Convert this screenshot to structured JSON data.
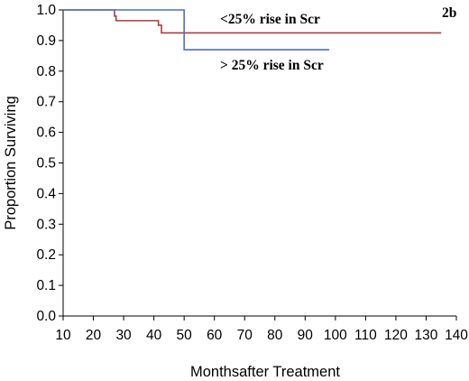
{
  "chart_data": {
    "type": "line",
    "step": true,
    "xlabel": "Monthsafter Treatment",
    "ylabel": "Proportion Surviving",
    "xlim": [
      10,
      140
    ],
    "ylim": [
      0.0,
      1.0
    ],
    "x_ticks": [
      10,
      20,
      30,
      40,
      50,
      60,
      70,
      80,
      90,
      100,
      110,
      120,
      130,
      140
    ],
    "x_tick_labels": [
      "10",
      "20",
      "30",
      "40",
      "50",
      "60",
      "70",
      "80",
      "90",
      "100",
      "110",
      "120",
      "130",
      "140"
    ],
    "y_ticks": [
      0.0,
      0.1,
      0.2,
      0.3,
      0.4,
      0.5,
      0.6,
      0.7,
      0.8,
      0.9,
      1.0
    ],
    "y_tick_labels": [
      "0.0",
      "0.1",
      "0.2",
      "0.3",
      "0.4",
      "0.5",
      "0.6",
      "0.7",
      "0.8",
      "0.9",
      "1.0"
    ],
    "grid": false,
    "panel_label": "2b",
    "series": [
      {
        "name": "<25% rise in Scr",
        "color": "#b03a3a",
        "x": [
          10,
          27,
          27.5,
          41.5,
          42.5,
          135
        ],
        "y": [
          1.0,
          0.98,
          0.965,
          0.95,
          0.925,
          0.925
        ]
      },
      {
        "name": "> 25% rise in Scr",
        "color": "#4a6fd1",
        "x": [
          10,
          50,
          98
        ],
        "y": [
          1.0,
          0.87,
          0.87
        ]
      }
    ]
  }
}
